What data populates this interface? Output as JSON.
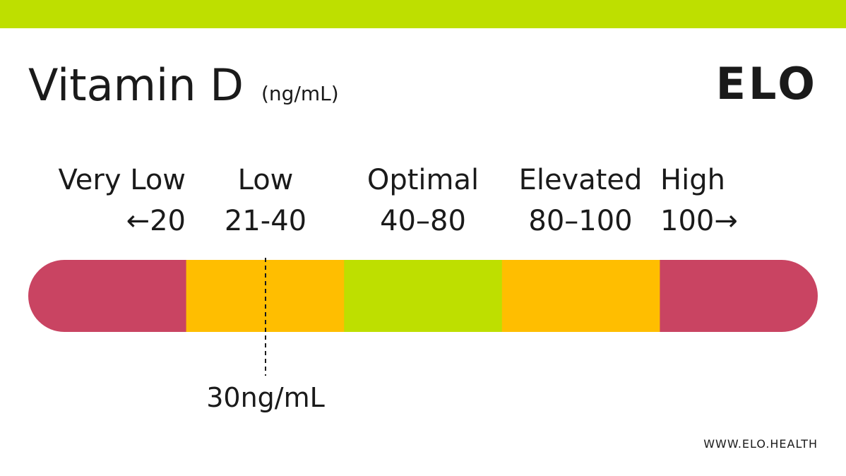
{
  "header": {
    "title": "Vitamin D",
    "unit": "(ng/mL)",
    "logo": "ELO"
  },
  "segments": [
    {
      "label": "Very Low",
      "range": "←20",
      "color": "#c94462"
    },
    {
      "label": "Low",
      "range": "21-40",
      "color": "#ffbe00"
    },
    {
      "label": "Optimal",
      "range": "40–80",
      "color": "#bedf00"
    },
    {
      "label": "Elevated",
      "range": "80–100",
      "color": "#ffbe00"
    },
    {
      "label": "High",
      "range": "100→",
      "color": "#c94462"
    }
  ],
  "marker": {
    "label": "30ng/mL"
  },
  "footer": {
    "url": "WWW.ELO.HEALTH"
  }
}
